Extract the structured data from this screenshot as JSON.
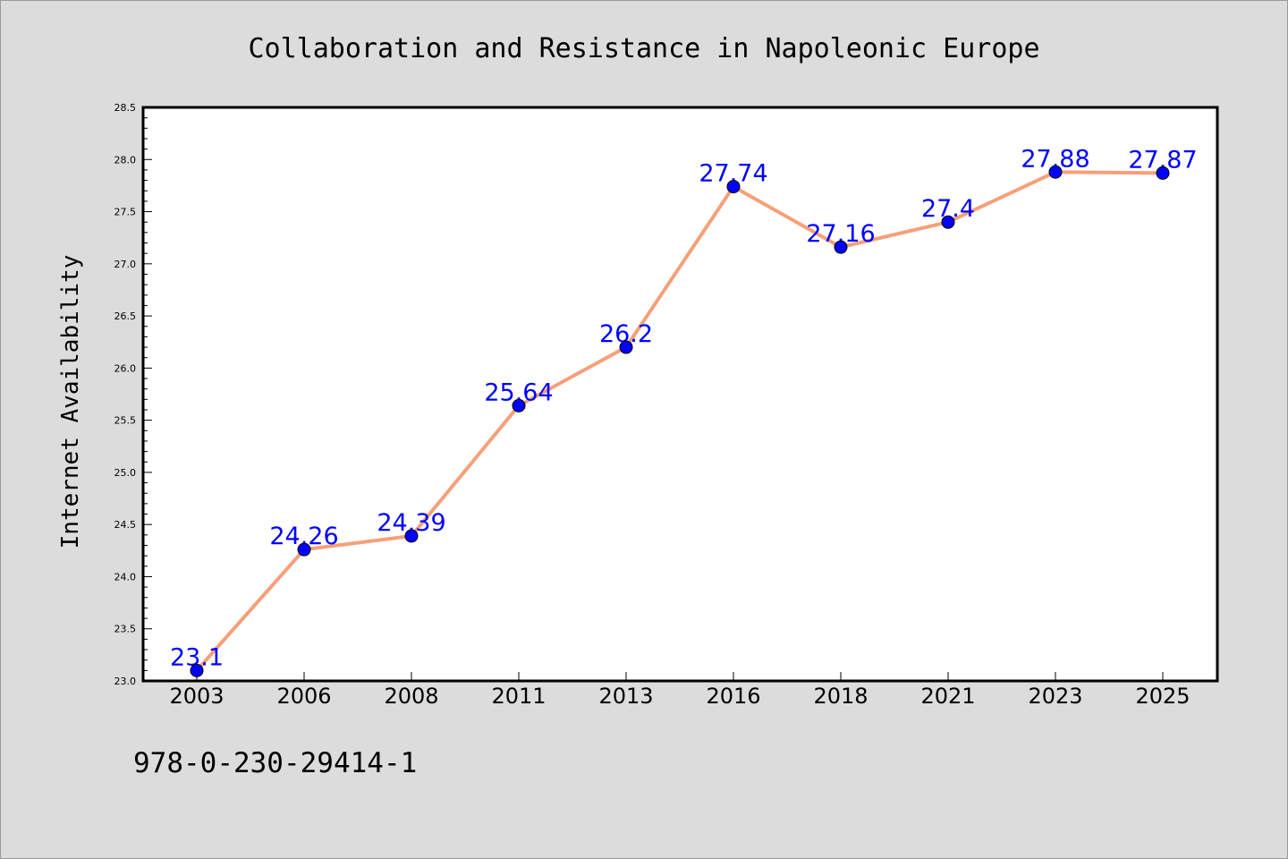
{
  "chart_data": {
    "type": "line",
    "title": "Collaboration and Resistance in Napoleonic Europe",
    "xlabel": "",
    "ylabel": "Internet Availability",
    "categories": [
      "2003",
      "2006",
      "2008",
      "2011",
      "2013",
      "2016",
      "2018",
      "2021",
      "2023",
      "2025"
    ],
    "series": [
      {
        "values": [
          23.1,
          24.26,
          24.39,
          25.64,
          26.2,
          27.74,
          27.16,
          27.4,
          27.88,
          27.87
        ],
        "labels": [
          "23.1",
          "24.26",
          "24.39",
          "25.64",
          "26.2",
          "27.74",
          "27.16",
          "27.4",
          "27.88",
          "27.87"
        ],
        "line_color": "#f5a07a",
        "marker_color": "#0000ff"
      }
    ],
    "ylim": [
      23.0,
      28.5
    ],
    "yticks": [
      "23.0",
      "23.5",
      "24.0",
      "24.5",
      "25.0",
      "25.5",
      "26.0",
      "26.5",
      "27.0",
      "27.5",
      "28.0",
      "28.5"
    ],
    "grid": false,
    "legend": "none"
  },
  "footer": {
    "isbn": "978-0-230-29414-1"
  },
  "colors": {
    "background": "#dcdcdc",
    "plot_background": "#ffffff",
    "line": "#f5a07a",
    "marker": "#0000ff",
    "data_label": "#0000ff"
  }
}
